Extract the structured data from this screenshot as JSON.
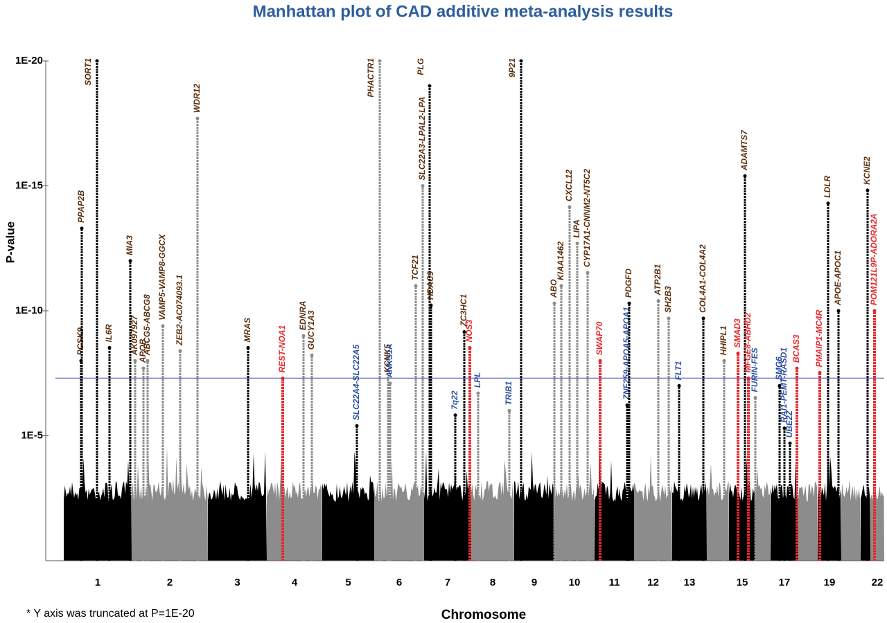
{
  "chart_data": {
    "type": "manhattan",
    "title": "Manhattan plot of CAD additive meta-analysis results",
    "x_label": "Chromosome",
    "y_label": "P-value",
    "note": "* Y axis was truncated at P=1E-20",
    "log_scale": true,
    "ylim": [
      1,
      1e-20
    ],
    "yticks": [
      {
        "value": 1e-20,
        "label": "1E-20"
      },
      {
        "value": 1e-15,
        "label": "1E-15"
      },
      {
        "value": 1e-10,
        "label": "1E-10"
      },
      {
        "value": 1e-05,
        "label": "1E-5"
      }
    ],
    "threshold": 5e-08,
    "threshold_color": "#7b83c4",
    "colors": [
      "#000000",
      "#8c8c8c"
    ],
    "categories": [
      "1",
      "2",
      "3",
      "4",
      "5",
      "6",
      "7",
      "8",
      "9",
      "10",
      "11",
      "12",
      "13",
      null,
      "15",
      null,
      "17",
      null,
      "19",
      null,
      null,
      "22"
    ],
    "loci": [
      {
        "name": "PCSK9",
        "color": "#5a2d0c",
        "value": 1e-08
      },
      {
        "name": "PPAP2B",
        "color": "#5a2d0c",
        "value": 5e-14
      },
      {
        "name": "SORT1",
        "color": "#5a2d0c",
        "value": 1e-20
      },
      {
        "name": "IL6R",
        "color": "#5a2d0c",
        "value": 3e-09
      },
      {
        "name": "MIA3",
        "color": "#5a2d0c",
        "value": 1e-12
      },
      {
        "name": "AK097927",
        "color": "#5a2d0c",
        "value": 1e-08
      },
      {
        "name": "APOB",
        "color": "#5a2d0c",
        "value": 2e-08
      },
      {
        "name": "ABCG5-ABCG8",
        "color": "#5a2d0c",
        "value": 1e-08
      },
      {
        "name": "VAMP5-VAMP8-GGCX",
        "color": "#5a2d0c",
        "value": 4e-10
      },
      {
        "name": "ZEB2-AC074093.1",
        "color": "#5a2d0c",
        "value": 4e-09
      },
      {
        "name": "WDR12",
        "color": "#5a2d0c",
        "value": 2e-18
      },
      {
        "name": "MRAS",
        "color": "#5a2d0c",
        "value": 3e-09
      },
      {
        "name": "REST-NOA1",
        "color": "#e8262b",
        "value": 5e-08
      },
      {
        "name": "EDNRA",
        "color": "#5a2d0c",
        "value": 1e-09
      },
      {
        "name": "GUCY1A3",
        "color": "#5a2d0c",
        "value": 6e-09
      },
      {
        "name": "SLC22A4-SLC22A5",
        "color": "#2a4fa0",
        "value": 4e-06
      },
      {
        "name": "PHACTR1",
        "color": "#5a2d0c",
        "value": 1e-20
      },
      {
        "name": "KCNK5",
        "color": "#5a2d0c",
        "value": 5e-08
      },
      {
        "name": "ANKS1A",
        "color": "#2a4fa0",
        "value": 8e-08
      },
      {
        "name": "TCF21",
        "color": "#5a2d0c",
        "value": 1e-11
      },
      {
        "name": "SLC22A3-LPAL2-LPA",
        "color": "#5a2d0c",
        "value": 1e-15
      },
      {
        "name": "PLG",
        "color": "#5a2d0c",
        "value": 1e-19
      },
      {
        "name": "HDAC9",
        "color": "#5a2d0c",
        "value": 6e-11
      },
      {
        "name": "7q22",
        "color": "#2a4fa0",
        "value": 1.5e-06
      },
      {
        "name": "ZC3HC1",
        "color": "#5a2d0c",
        "value": 7e-10
      },
      {
        "name": "NOS3",
        "color": "#e8262b",
        "value": 3e-09
      },
      {
        "name": "LPL",
        "color": "#2a4fa0",
        "value": 2e-07
      },
      {
        "name": "TRIB1",
        "color": "#2a4fa0",
        "value": 1e-06
      },
      {
        "name": "9P21",
        "color": "#5a2d0c",
        "value": 1e-20
      },
      {
        "name": "ABO",
        "color": "#5a2d0c",
        "value": 5e-11
      },
      {
        "name": "KIAA1462",
        "color": "#5a2d0c",
        "value": 1e-11
      },
      {
        "name": "CXCL12",
        "color": "#5a2d0c",
        "value": 7e-15
      },
      {
        "name": "LIPA",
        "color": "#5a2d0c",
        "value": 2e-13
      },
      {
        "name": "CYP17A1-CNNM2-NT5C2",
        "color": "#5a2d0c",
        "value": 3e-12
      },
      {
        "name": "SWAP70",
        "color": "#e8262b",
        "value": 1e-08
      },
      {
        "name": "ZNF259-APOA5-APOA1",
        "color": "#2a4fa0",
        "value": 6e-07
      },
      {
        "name": "PDGFD",
        "color": "#5a2d0c",
        "value": 5e-11
      },
      {
        "name": "ATP2B1",
        "color": "#5a2d0c",
        "value": 4e-11
      },
      {
        "name": "SH2B3",
        "color": "#5a2d0c",
        "value": 2e-10
      },
      {
        "name": "FLT1",
        "color": "#2a4fa0",
        "value": 1e-07
      },
      {
        "name": "COL4A1-COL4A2",
        "color": "#5a2d0c",
        "value": 2e-10
      },
      {
        "name": "HHIPL1",
        "color": "#5a2d0c",
        "value": 1e-08
      },
      {
        "name": "SMAD3",
        "color": "#e8262b",
        "value": 5e-09
      },
      {
        "name": "ADAMTS7",
        "color": "#5a2d0c",
        "value": 4e-16
      },
      {
        "name": "MFGE8-ABHD2",
        "color": "#e8262b",
        "value": 5e-08
      },
      {
        "name": "FURIN-FES",
        "color": "#2a4fa0",
        "value": 3e-07
      },
      {
        "name": "SMG6",
        "color": "#2a4fa0",
        "value": 1e-07
      },
      {
        "name": "RAI1-PEMT-RASD1",
        "color": "#2a4fa0",
        "value": 5e-06
      },
      {
        "name": "UBE2Z",
        "color": "#2a4fa0",
        "value": 2e-05
      },
      {
        "name": "BCAS3",
        "color": "#e8262b",
        "value": 2e-08
      },
      {
        "name": "PMAIP1-MC4R",
        "color": "#e8262b",
        "value": 3e-08
      },
      {
        "name": "LDLR",
        "color": "#5a2d0c",
        "value": 5e-15
      },
      {
        "name": "APOE-APOC1",
        "color": "#5a2d0c",
        "value": 1e-10
      },
      {
        "name": "KCNE2",
        "color": "#5a2d0c",
        "value": 1.5e-15
      },
      {
        "name": "POM121L9P-ADORA2A",
        "color": "#e8262b",
        "value": 1e-10
      }
    ]
  }
}
